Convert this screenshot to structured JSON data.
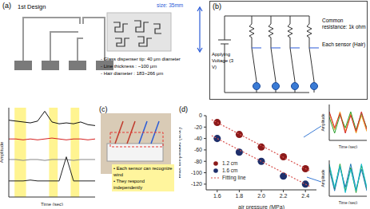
{
  "panels": {
    "panel_a": {
      "label": "(a)",
      "title": "1st Design",
      "size": "size: 35mm",
      "notes": [
        "- Glass dispenser tip: 40 μm diameter",
        "- Line thickness : ~100 μm",
        "- Hair diameter : 183~266 μm"
      ]
    },
    "panel_b": {
      "label": "(b)",
      "voltage": "Applying Voltage (3 V)",
      "resistance": "Common resistance: 1k ohm",
      "sensor": "Each sensor (Hair)"
    },
    "panel_c": {
      "label": "(c)",
      "notes": [
        "• Each sensor can recognize wind",
        "• They respond independently"
      ]
    },
    "panel_d": {
      "label": "(d)"
    }
  },
  "chart_data": [
    {
      "type": "line",
      "x_label": "Time (sec)",
      "y_label": "Amplitude",
      "x": [
        0,
        25,
        50,
        75,
        100,
        125,
        150,
        175,
        200,
        225,
        250,
        275,
        300
      ],
      "series": [
        {
          "color": "#111111",
          "values": [
            8.6,
            8.5,
            8.4,
            8.3,
            8.5,
            9.6,
            8.4,
            8.2,
            8.3,
            8.2,
            8.4,
            8.1,
            8.0
          ]
        },
        {
          "color": "#d62020",
          "values": [
            6.5,
            6.5,
            6.4,
            6.5,
            6.4,
            6.5,
            6.6,
            6.5,
            6.4,
            6.5,
            6.5,
            6.4,
            6.5
          ]
        },
        {
          "color": "#888888",
          "values": [
            4.2,
            4.2,
            4.1,
            4.2,
            4.2,
            4.1,
            4.2,
            4.2,
            4.2,
            4.1,
            4.2,
            4.2,
            4.2
          ]
        },
        {
          "color": "#222222",
          "values": [
            1.8,
            1.8,
            1.8,
            1.9,
            1.8,
            1.8,
            1.8,
            1.8,
            4.5,
            1.8,
            1.8,
            1.8,
            1.8
          ]
        }
      ],
      "highlights": [
        [
          20,
          60
        ],
        [
          140,
          170
        ],
        [
          215,
          245
        ]
      ],
      "xlim": [
        0,
        300
      ],
      "ylim": [
        0,
        10
      ],
      "xticks": [
        0,
        100,
        200,
        300
      ],
      "yticks": [
        0,
        5,
        10
      ],
      "tick_labels": false
    },
    {
      "type": "scatter",
      "x_label": "air pressure (MPa)",
      "y_label": "Max amplitude (a.u.)",
      "x": [
        1.6,
        1.8,
        2.0,
        2.2,
        2.4
      ],
      "series": [
        {
          "name": "1.2 cm",
          "color": "#8b1a1a",
          "marker": "circle",
          "values": [
            -12,
            -33,
            -55,
            -72,
            -93
          ]
        },
        {
          "name": "1.6 cm",
          "color": "#1f2f6b",
          "marker": "circle",
          "values": [
            -40,
            -64,
            -80,
            -106,
            -120
          ]
        },
        {
          "name": "Fitting line",
          "type": "line",
          "line_style": "dotted",
          "color": "#d9534f",
          "x": [
            1.55,
            2.45
          ],
          "values": [
            -7,
            -98
          ]
        },
        {
          "name": "Fitting line",
          "type": "line",
          "line_style": "dotted",
          "color": "#d9534f",
          "x": [
            1.55,
            2.45
          ],
          "values": [
            -35,
            -125
          ]
        }
      ],
      "xlim": [
        1.5,
        2.5
      ],
      "ylim": [
        -130,
        0
      ],
      "xticks": [
        1.6,
        1.8,
        {
          "value": 2,
          "label": "2.0"
        },
        2.2,
        2.4
      ],
      "yticks": [
        -120,
        -100,
        -80,
        -60,
        -40,
        -20,
        0
      ],
      "legend": "lower left"
    },
    {
      "type": "line",
      "x_label": "Time (sec)",
      "y_label": "Amplitude",
      "x": [
        0,
        1,
        2,
        3,
        4,
        5,
        6,
        7
      ],
      "series": [
        {
          "color": "#f0a020",
          "values": [
            0.5,
            -0.4,
            0.6,
            -0.5,
            0.5,
            -0.6,
            0.4,
            -0.5
          ]
        },
        {
          "color": "#2ca02c",
          "values": [
            0.3,
            -0.6,
            0.4,
            -0.3,
            0.6,
            -0.4,
            0.5,
            -0.3
          ]
        },
        {
          "color": "#d62728",
          "values": [
            0.6,
            -0.3,
            0.5,
            -0.6,
            0.4,
            -0.5,
            0.6,
            -0.4
          ]
        }
      ],
      "xlim": [
        0,
        7
      ],
      "ylim": [
        -1,
        1
      ],
      "xticks": [
        0,
        7
      ],
      "yticks": [
        -1,
        1
      ],
      "tick_labels": false
    },
    {
      "type": "line",
      "x_label": "Time (sec)",
      "y_label": "Amplitude",
      "x": [
        0,
        1,
        2,
        3,
        4,
        5,
        6,
        7
      ],
      "series": [
        {
          "color": "#2ca02c",
          "values": [
            0.7,
            -0.6,
            0.8,
            -0.7,
            0.6,
            -0.8,
            0.7,
            -0.6
          ]
        },
        {
          "color": "#1f77b4",
          "values": [
            0.5,
            -0.7,
            0.6,
            -0.5,
            0.8,
            -0.6,
            0.5,
            -0.7
          ]
        },
        {
          "color": "#17becf",
          "values": [
            0.8,
            -0.5,
            0.7,
            -0.8,
            0.5,
            -0.7,
            0.8,
            -0.5
          ]
        }
      ],
      "xlim": [
        0,
        7
      ],
      "ylim": [
        -1,
        1
      ],
      "xticks": [
        0,
        7
      ],
      "yticks": [
        -1,
        1
      ],
      "tick_labels": false
    }
  ]
}
